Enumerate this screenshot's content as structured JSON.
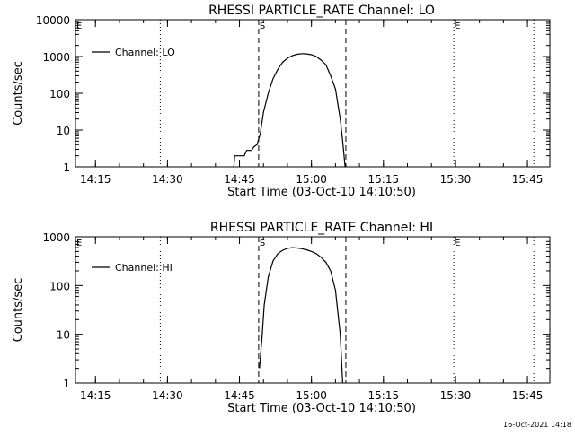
{
  "chart_data": [
    {
      "type": "line",
      "title": "RHESSI PARTICLE_RATE Channel: LO",
      "xlabel": "Start Time (03-Oct-10 14:10:50)",
      "ylabel": "Counts/sec",
      "y_scale": "log",
      "xlim": [
        "14:10:50",
        "15:49:40"
      ],
      "ylim": [
        1,
        10000
      ],
      "x_tick_labels": [
        "14:15",
        "14:30",
        "14:45",
        "15:00",
        "15:15",
        "15:30",
        "15:45"
      ],
      "y_tick_labels": [
        "1",
        "10",
        "100",
        "1000",
        "10000"
      ],
      "y_ticks": [
        1,
        10,
        100,
        1000,
        10000
      ],
      "legend": {
        "placement": "top-left",
        "entries": [
          "Channel: LO"
        ]
      },
      "markers": [
        {
          "label": "E",
          "x": "14:10:50",
          "style": "dotted"
        },
        {
          "label": "",
          "x": "14:28:30",
          "style": "dotted"
        },
        {
          "label": "S",
          "x": "14:49:00",
          "style": "dashed"
        },
        {
          "label": "",
          "x": "15:07:10",
          "style": "dashed"
        },
        {
          "label": "E",
          "x": "15:29:40",
          "style": "dotted"
        },
        {
          "label": "",
          "x": "15:46:20",
          "style": "dotted"
        }
      ],
      "series": [
        {
          "name": "Channel: LO",
          "points": [
            [
              "14:43:50",
              1
            ],
            [
              "14:44:00",
              2
            ],
            [
              "14:46:00",
              2
            ],
            [
              "14:46:30",
              2.8
            ],
            [
              "14:47:30",
              2.8
            ],
            [
              "14:48:00",
              3.5
            ],
            [
              "14:48:40",
              4
            ],
            [
              "14:49:20",
              8
            ],
            [
              "14:50:00",
              30
            ],
            [
              "14:51:00",
              100
            ],
            [
              "14:52:00",
              250
            ],
            [
              "14:53:00",
              450
            ],
            [
              "14:54:00",
              700
            ],
            [
              "14:55:00",
              900
            ],
            [
              "14:56:00",
              1050
            ],
            [
              "14:57:00",
              1150
            ],
            [
              "14:58:00",
              1200
            ],
            [
              "14:59:00",
              1180
            ],
            [
              "15:00:00",
              1120
            ],
            [
              "15:01:00",
              1000
            ],
            [
              "15:02:00",
              800
            ],
            [
              "15:03:00",
              600
            ],
            [
              "15:04:00",
              300
            ],
            [
              "15:05:00",
              130
            ],
            [
              "15:06:00",
              20
            ],
            [
              "15:06:30",
              5
            ],
            [
              "15:07:00",
              1
            ]
          ]
        }
      ]
    },
    {
      "type": "line",
      "title": "RHESSI PARTICLE_RATE Channel: HI",
      "xlabel": "Start Time (03-Oct-10 14:10:50)",
      "ylabel": "Counts/sec",
      "y_scale": "log",
      "xlim": [
        "14:10:50",
        "15:49:40"
      ],
      "ylim": [
        1,
        1000
      ],
      "x_tick_labels": [
        "14:15",
        "14:30",
        "14:45",
        "15:00",
        "15:15",
        "15:30",
        "15:45"
      ],
      "y_tick_labels": [
        "1",
        "10",
        "100",
        "1000"
      ],
      "y_ticks": [
        1,
        10,
        100,
        1000
      ],
      "legend": {
        "placement": "top-left",
        "entries": [
          "Channel: HI"
        ]
      },
      "markers": [
        {
          "label": "E",
          "x": "14:10:50",
          "style": "dotted"
        },
        {
          "label": "",
          "x": "14:28:30",
          "style": "dotted"
        },
        {
          "label": "S",
          "x": "14:49:00",
          "style": "dashed"
        },
        {
          "label": "",
          "x": "15:07:10",
          "style": "dashed"
        },
        {
          "label": "E",
          "x": "15:29:40",
          "style": "dotted"
        },
        {
          "label": "",
          "x": "15:46:20",
          "style": "dotted"
        }
      ],
      "series": [
        {
          "name": "Channel: HI",
          "points": [
            [
              "14:49:10",
              2
            ],
            [
              "14:49:40",
              8
            ],
            [
              "14:50:10",
              40
            ],
            [
              "14:51:00",
              150
            ],
            [
              "14:52:00",
              320
            ],
            [
              "14:53:00",
              450
            ],
            [
              "14:54:00",
              530
            ],
            [
              "14:55:00",
              580
            ],
            [
              "14:56:00",
              600
            ],
            [
              "14:57:00",
              590
            ],
            [
              "14:58:00",
              570
            ],
            [
              "14:59:00",
              540
            ],
            [
              "15:00:00",
              500
            ],
            [
              "15:01:00",
              450
            ],
            [
              "15:02:00",
              380
            ],
            [
              "15:03:00",
              300
            ],
            [
              "15:04:00",
              200
            ],
            [
              "15:05:00",
              80
            ],
            [
              "15:06:00",
              10
            ],
            [
              "15:06:30",
              1
            ]
          ]
        }
      ]
    }
  ],
  "footer_date": "16-Oct-2021 14:18"
}
